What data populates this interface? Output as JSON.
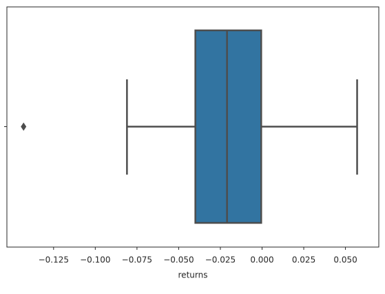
{
  "chart_data": {
    "type": "boxplot",
    "xlabel": "returns",
    "whisker_low": -0.081,
    "q1": -0.04,
    "median": -0.021,
    "q3": -0.0005,
    "whisker_high": 0.057,
    "outliers": [
      -0.143
    ],
    "color": "#3274a1",
    "line_color": "#4d4d4d",
    "xlim": [
      -0.153,
      0.07
    ],
    "xticks": [
      {
        "value": -0.125,
        "label": "−0.125"
      },
      {
        "value": -0.1,
        "label": "−0.100"
      },
      {
        "value": -0.075,
        "label": "−0.075"
      },
      {
        "value": -0.05,
        "label": "−0.050"
      },
      {
        "value": -0.025,
        "label": "−0.025"
      },
      {
        "value": 0,
        "label": "0.000"
      },
      0.025,
      {
        "value": 0.05,
        "label": "0.050"
      }
    ]
  }
}
